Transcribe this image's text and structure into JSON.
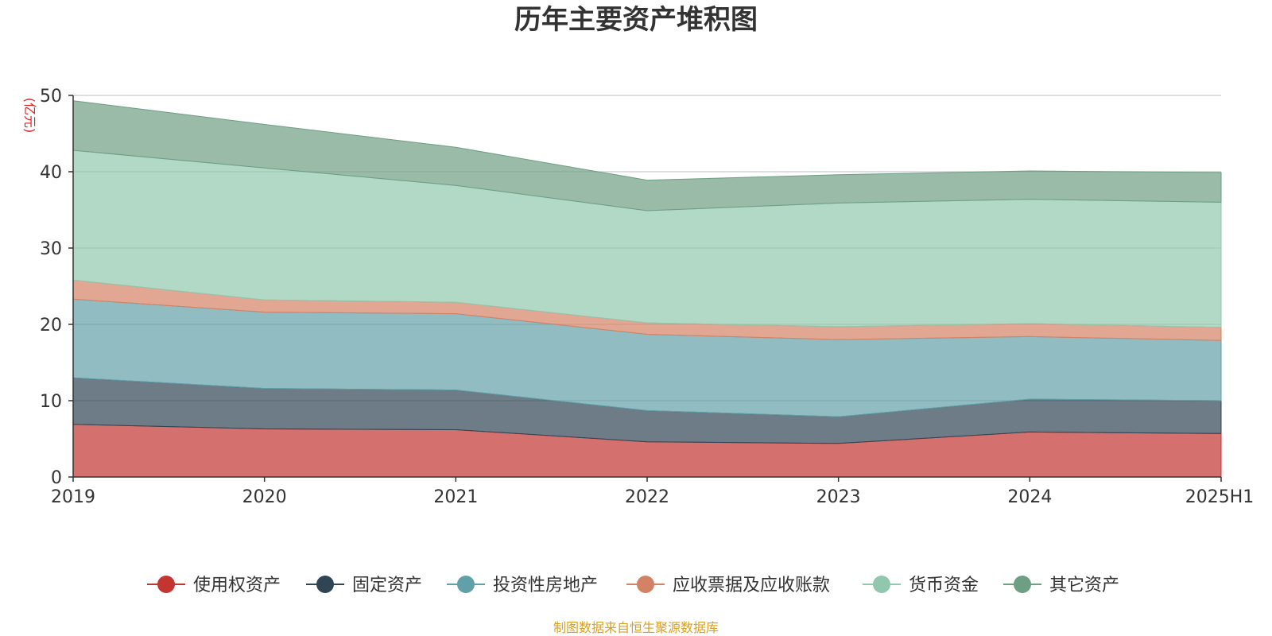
{
  "chart_data": {
    "type": "area",
    "stacked": true,
    "title": "历年主要资产堆积图",
    "unit_label": "(亿元)",
    "x": [
      "2019",
      "2020",
      "2021",
      "2022",
      "2023",
      "2024",
      "2025H1"
    ],
    "ylim": [
      0,
      50
    ],
    "yticks": [
      "0",
      "10",
      "20",
      "30",
      "40",
      "50"
    ],
    "grid": true,
    "legend_position": "bottom",
    "series": [
      {
        "name": "使用权资产",
        "color": "#c23531",
        "values": [
          6.9,
          6.3,
          6.2,
          4.6,
          4.4,
          5.9,
          5.7
        ]
      },
      {
        "name": "固定资产",
        "color": "#2f4554",
        "values": [
          6.1,
          5.3,
          5.2,
          4.1,
          3.5,
          4.3,
          4.3
        ]
      },
      {
        "name": "投资性房地产",
        "color": "#61a0a8",
        "values": [
          10.3,
          10.0,
          10.0,
          10.0,
          10.1,
          8.2,
          7.9
        ]
      },
      {
        "name": "应收票据及应收账款",
        "color": "#d48265",
        "values": [
          2.5,
          1.6,
          1.5,
          1.5,
          1.7,
          1.7,
          1.7
        ]
      },
      {
        "name": "货币资金",
        "color": "#91c7ae",
        "values": [
          17.0,
          17.3,
          15.3,
          14.7,
          16.2,
          16.3,
          16.4
        ]
      },
      {
        "name": "其它资产",
        "color": "#6e9e83",
        "values": [
          6.5,
          5.7,
          5.0,
          4.0,
          3.7,
          3.7,
          3.9
        ]
      }
    ]
  },
  "footer": {
    "source": "制图数据来自恒生聚源数据库"
  }
}
